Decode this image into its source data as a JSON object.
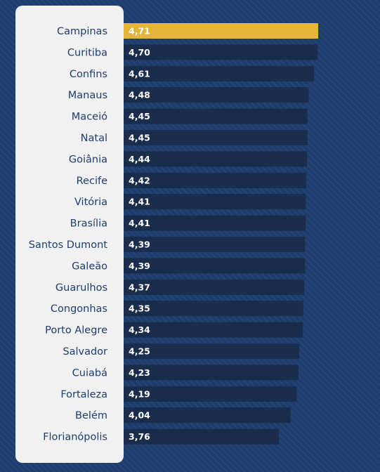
{
  "chart_data": {
    "type": "bar",
    "orientation": "horizontal",
    "categories": [
      "Campinas",
      "Curitiba",
      "Confins",
      "Manaus",
      "Maceió",
      "Natal",
      "Goiânia",
      "Recife",
      "Vitória",
      "Brasília",
      "Santos Dumont",
      "Galeão",
      "Guarulhos",
      "Congonhas",
      "Porto Alegre",
      "Salvador",
      "Cuiabá",
      "Fortaleza",
      "Belém",
      "Florianópolis"
    ],
    "values": [
      4.71,
      4.7,
      4.61,
      4.48,
      4.45,
      4.45,
      4.44,
      4.42,
      4.41,
      4.41,
      4.39,
      4.39,
      4.37,
      4.35,
      4.34,
      4.25,
      4.23,
      4.19,
      4.04,
      3.76
    ],
    "value_labels": [
      "4,71",
      "4,70",
      "4,61",
      "4,48",
      "4,45",
      "4,45",
      "4,44",
      "4,42",
      "4,41",
      "4,41",
      "4,39",
      "4,39",
      "4,37",
      "4,35",
      "4,34",
      "4,25",
      "4,23",
      "4,19",
      "4,04",
      "3,76"
    ],
    "highlight_index": 0,
    "colors": {
      "bar": "#1a2d4d",
      "highlight": "#e5b53a",
      "label_text": "#1d3d6e",
      "value_text": "#ffffff",
      "panel": "#f1f1f1",
      "background": "#1d3d6e"
    },
    "grid": false
  }
}
